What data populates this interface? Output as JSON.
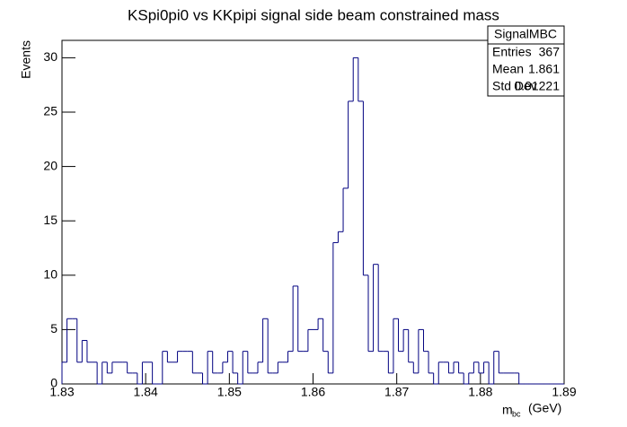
{
  "chart_data": {
    "type": "histogram",
    "title": "KSpi0pi0 vs KKpipi signal side beam constrained mass",
    "ylabel": "Events",
    "xlabel": "m",
    "xlabel_sub": "bc",
    "xlabel_unit": "(GeV)",
    "color": "#000080",
    "xlim": [
      1.83,
      1.89
    ],
    "xticks": [
      1.83,
      1.84,
      1.85,
      1.86,
      1.87,
      1.88,
      1.89
    ],
    "ylim": [
      0,
      31.6
    ],
    "yticks": [
      0,
      5,
      10,
      15,
      20,
      25,
      30
    ],
    "bins": [
      1.83,
      1.8306,
      1.8312,
      1.8318,
      1.8324,
      1.833,
      1.8336,
      1.8342,
      1.8348,
      1.8354,
      1.836,
      1.8366,
      1.8372,
      1.8378,
      1.8384,
      1.839,
      1.8396,
      1.8402,
      1.8408,
      1.8414,
      1.842,
      1.8426,
      1.8432,
      1.8438,
      1.8444,
      1.845,
      1.8456,
      1.8462,
      1.8468,
      1.8474,
      1.848,
      1.8486,
      1.8492,
      1.8498,
      1.8504,
      1.851,
      1.8516,
      1.8522,
      1.8528,
      1.8534,
      1.854,
      1.8546,
      1.8552,
      1.8558,
      1.8564,
      1.857,
      1.8576,
      1.8582,
      1.8588,
      1.8594,
      1.86,
      1.8606,
      1.8612,
      1.8618,
      1.8624,
      1.863,
      1.8636,
      1.8642,
      1.8648,
      1.8654,
      1.866,
      1.8666,
      1.8672,
      1.8678,
      1.8684,
      1.869,
      1.8696,
      1.8702,
      1.8708,
      1.8714,
      1.872,
      1.8726,
      1.8732,
      1.8738,
      1.8744,
      1.875,
      1.8756,
      1.8762,
      1.8768,
      1.8774,
      1.878,
      1.8786,
      1.8792,
      1.8798,
      1.8804,
      1.881,
      1.8816,
      1.8822,
      1.8828,
      1.8834,
      1.884,
      1.8846,
      1.8852,
      1.8858,
      1.8864,
      1.887,
      1.8876,
      1.8882,
      1.8888,
      1.8894,
      1.89
    ],
    "values": [
      2,
      6,
      6,
      2,
      4,
      2,
      2,
      0,
      2,
      1,
      2,
      2,
      2,
      1,
      1,
      0,
      2,
      2,
      0,
      0,
      3,
      2,
      2,
      3,
      3,
      3,
      1,
      1,
      0,
      3,
      1,
      1,
      2,
      3,
      1,
      0,
      3,
      1,
      1,
      2,
      6,
      1,
      1,
      2,
      2,
      3,
      9,
      3,
      3,
      5,
      5,
      6,
      3,
      1,
      13,
      14,
      18,
      26,
      30,
      26,
      10,
      3,
      11,
      3,
      3,
      1,
      6,
      3,
      5,
      2,
      1,
      5,
      3,
      1,
      0,
      2,
      2,
      1,
      2,
      1,
      0,
      1,
      2,
      1,
      2,
      0,
      3,
      1,
      1,
      1,
      1,
      0,
      0,
      0,
      0,
      0,
      0,
      0,
      0,
      0
    ],
    "stats": {
      "title": "SignalMBC",
      "rows": [
        [
          "Entries",
          "367"
        ],
        [
          "Mean",
          "1.861"
        ],
        [
          "Std Dev",
          "0.01221"
        ]
      ]
    }
  }
}
